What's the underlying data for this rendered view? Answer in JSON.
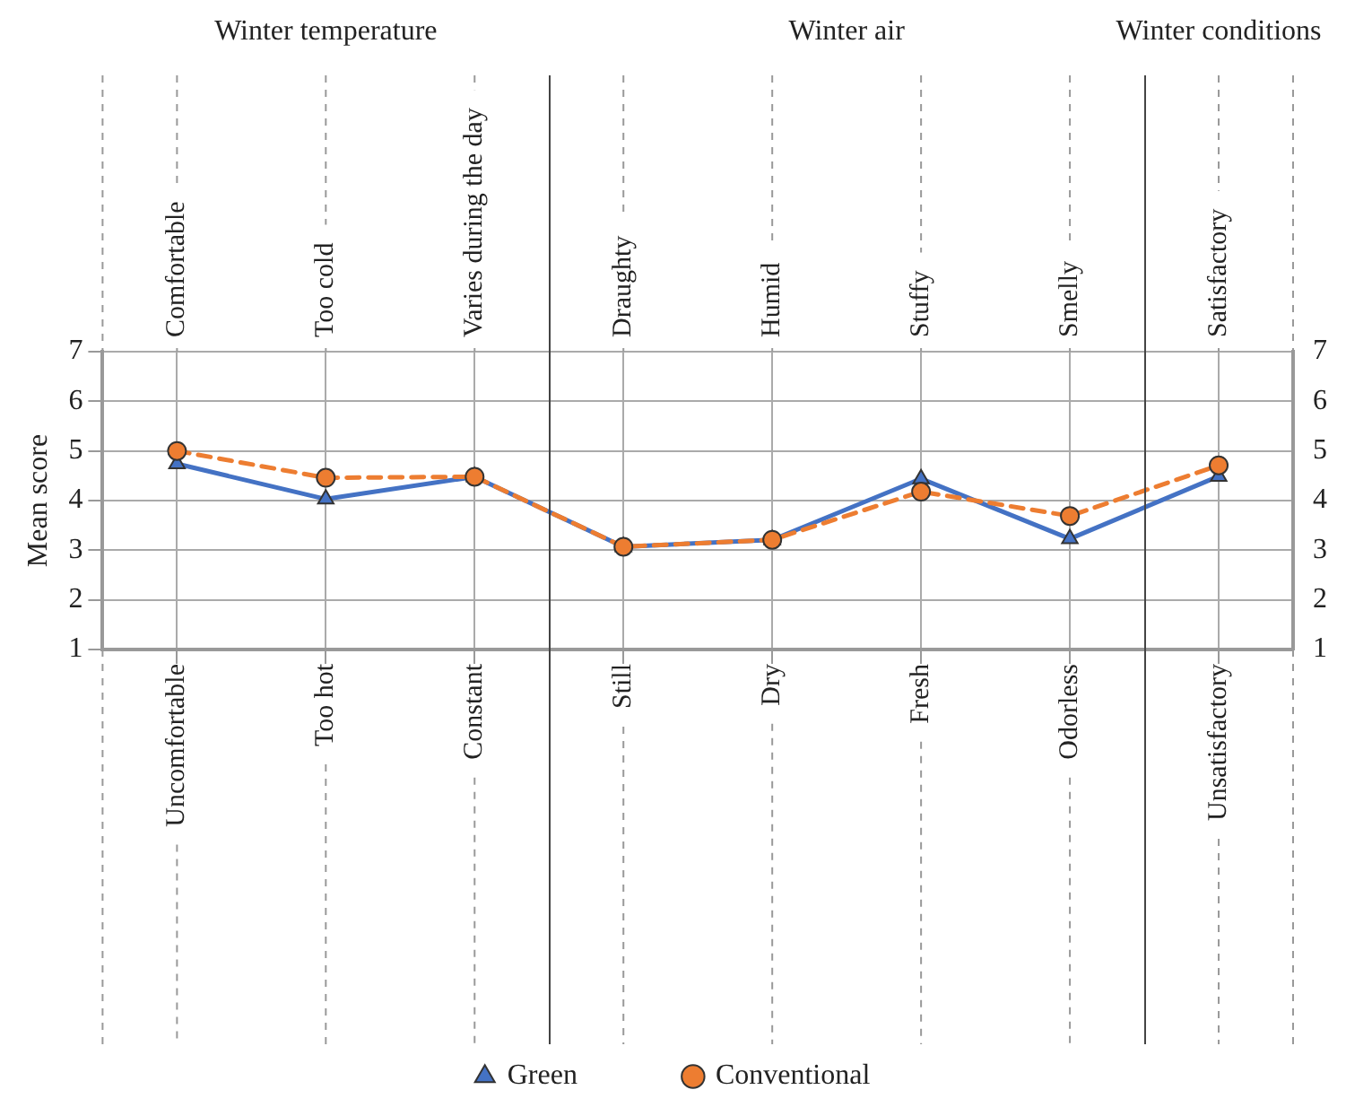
{
  "chart_data": {
    "type": "line",
    "ylabel": "Mean score",
    "categories": [
      "Uncomfortable",
      "Too hot",
      "Constant",
      "Still",
      "Dry",
      "Fresh",
      "Odorless",
      "Unsatisfactory"
    ],
    "series": [
      {
        "name": "Green",
        "color": "#4472c4",
        "marker": "triangle",
        "line_style": "solid",
        "values": [
          4.74,
          4.03,
          4.48,
          3.07,
          3.21,
          4.44,
          3.23,
          4.49
        ]
      },
      {
        "name": "Conventional",
        "color": "#ed7d31",
        "marker": "circle",
        "line_style": "dashed",
        "values": [
          5.0,
          4.46,
          4.48,
          3.07,
          3.21,
          4.18,
          3.69,
          4.71
        ]
      }
    ],
    "ylim": [
      1,
      7
    ],
    "yticks": [
      1,
      2,
      3,
      4,
      5,
      6,
      7
    ],
    "y2lim": [
      1,
      7
    ],
    "y2ticks": [
      1,
      2,
      3,
      4,
      5,
      6,
      7
    ],
    "grid": true,
    "legend": "bottom",
    "annotations": [
      {
        "text": "Comfortable",
        "x": "Uncomfortable"
      },
      {
        "text": "Too cold",
        "x": "Too hot"
      },
      {
        "text": "Varies during the day",
        "x": "Constant"
      },
      {
        "text": "Draughty",
        "x": "Still"
      },
      {
        "text": "Humid",
        "x": "Dry"
      },
      {
        "text": "Stuffy",
        "x": "Fresh"
      },
      {
        "text": "Smelly",
        "x": "Odorless"
      },
      {
        "text": "Satisfactory",
        "x": "Unsatisfactory"
      },
      "Winter temperature",
      "Winter air",
      "Winter conditions"
    ]
  }
}
